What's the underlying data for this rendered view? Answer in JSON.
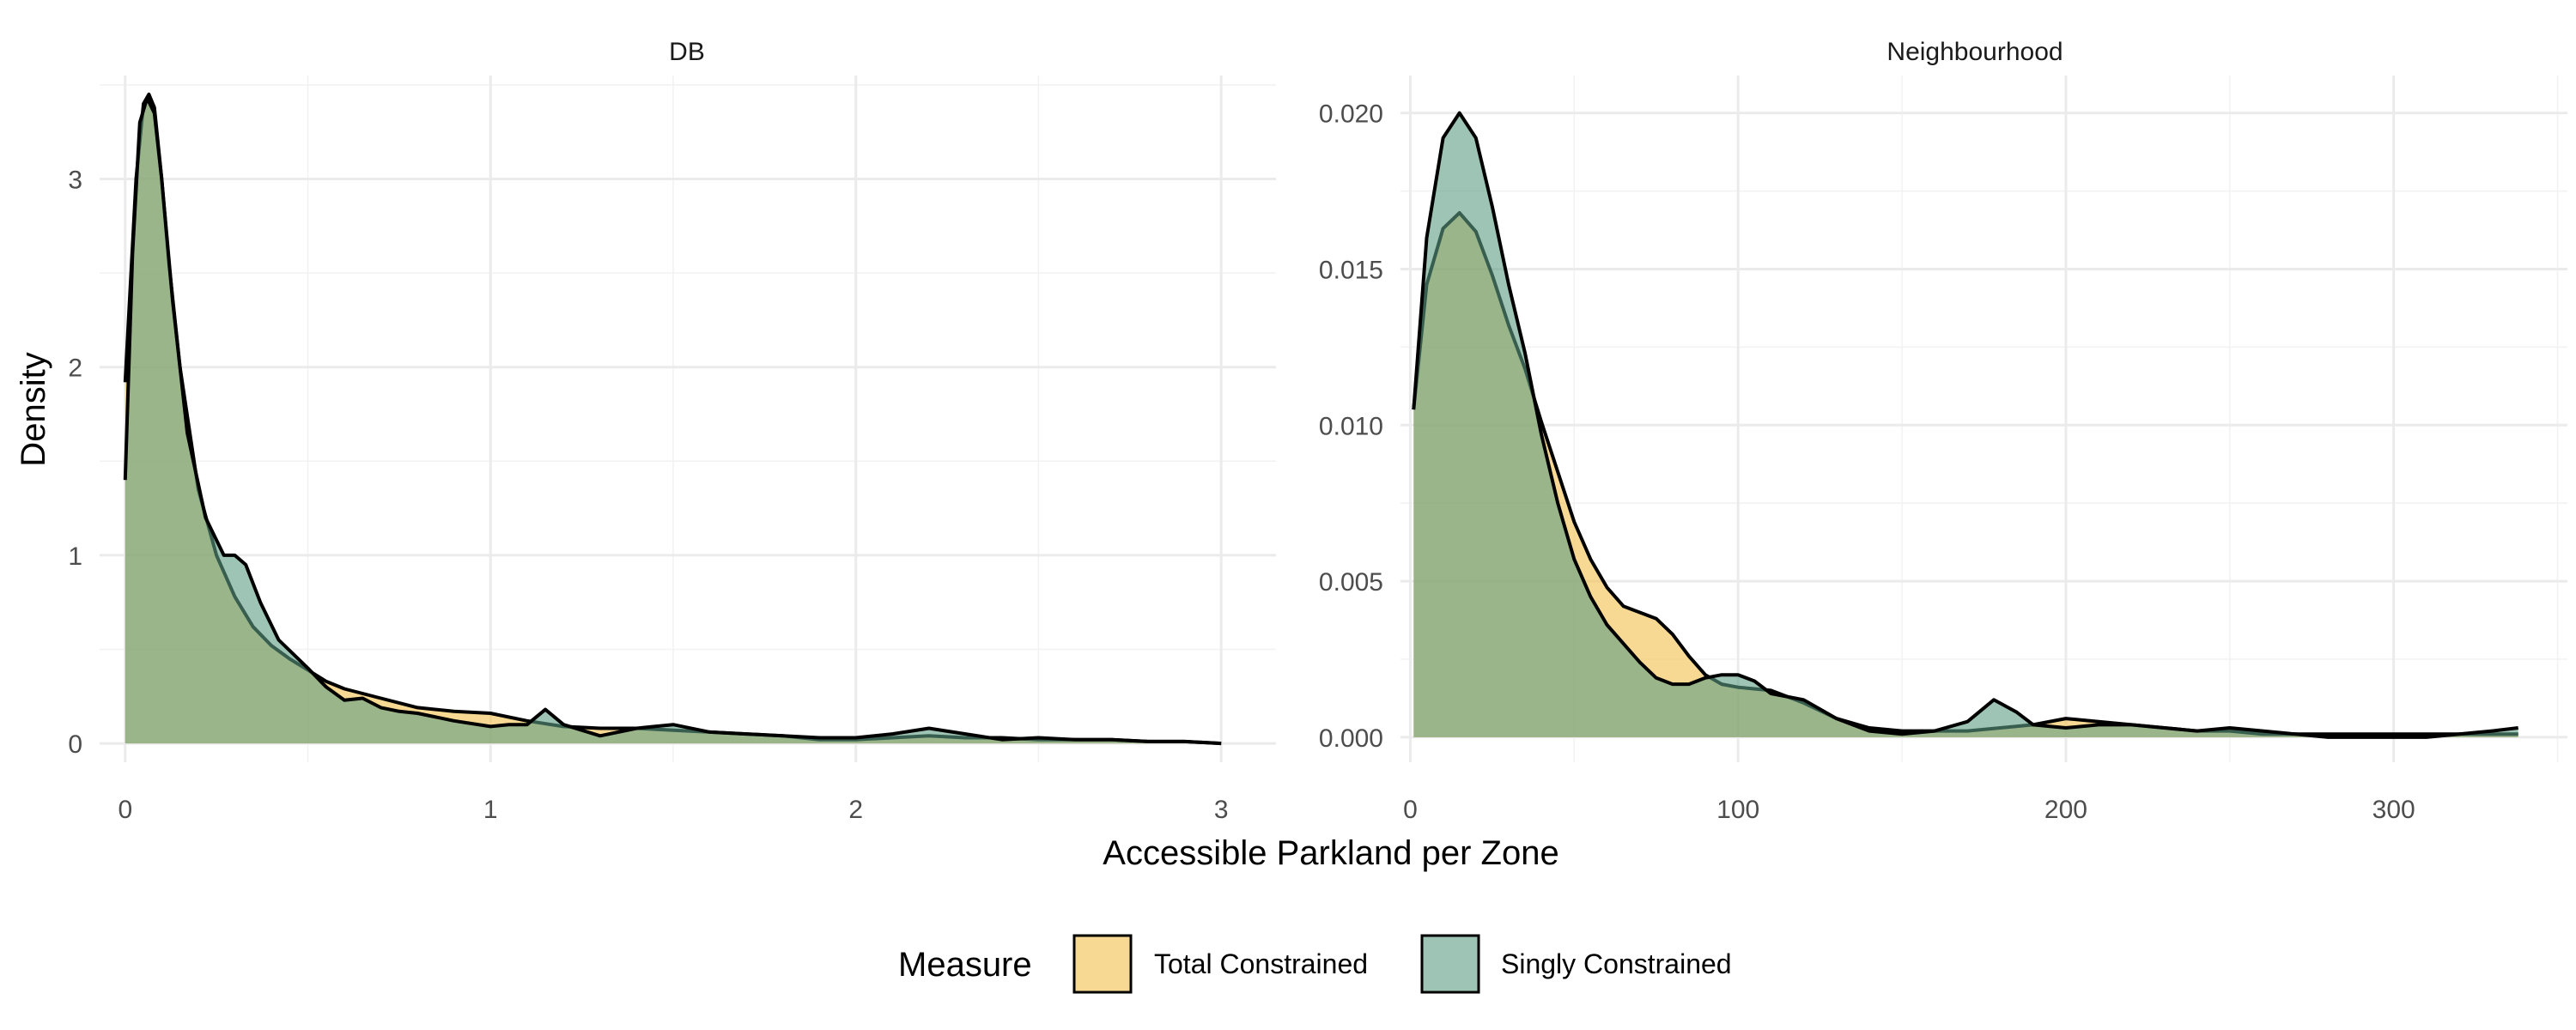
{
  "chart_data": {
    "type": "area",
    "xlabel": "Accessible Parkland per Zone",
    "ylabel": "Density",
    "legend": {
      "title": "Measure",
      "position": "bottom",
      "entries": [
        {
          "name": "Total Constrained",
          "color": "#f2c45a"
        },
        {
          "name": "Singly Constrained",
          "color": "#5e9c84"
        }
      ]
    },
    "grid": true,
    "panels": [
      {
        "title": "DB",
        "xlim": [
          -0.07,
          3.15
        ],
        "ylim": [
          -0.1,
          3.55
        ],
        "xticks": [
          0,
          1,
          2,
          3
        ],
        "xtick_labels": [
          "0",
          "1",
          "2",
          "3"
        ],
        "xminor": [
          0.5,
          1.5,
          2.5
        ],
        "yticks": [
          0,
          1,
          2,
          3
        ],
        "ytick_labels": [
          "0",
          "1",
          "2",
          "3"
        ],
        "yminor": [
          0.5,
          1.5,
          2.5,
          3.5
        ],
        "series": [
          {
            "name": "Total Constrained",
            "x": [
              0,
              0.03,
              0.05,
              0.065,
              0.08,
              0.1,
              0.12,
              0.15,
              0.2,
              0.25,
              0.3,
              0.35,
              0.4,
              0.45,
              0.5,
              0.55,
              0.6,
              0.7,
              0.8,
              0.9,
              1.0,
              1.1,
              1.2,
              1.3,
              1.4,
              1.5,
              1.6,
              1.7,
              1.8,
              1.9,
              2.0,
              2.1,
              2.2,
              2.3,
              2.4,
              2.5,
              2.6,
              2.7,
              2.8,
              2.9,
              3.0
            ],
            "y": [
              1.92,
              3.0,
              3.4,
              3.45,
              3.38,
              3.0,
              2.55,
              2.0,
              1.35,
              1.0,
              0.78,
              0.62,
              0.52,
              0.45,
              0.39,
              0.33,
              0.29,
              0.24,
              0.19,
              0.17,
              0.16,
              0.12,
              0.09,
              0.08,
              0.08,
              0.07,
              0.06,
              0.05,
              0.04,
              0.02,
              0.02,
              0.03,
              0.04,
              0.03,
              0.03,
              0.02,
              0.02,
              0.02,
              0.01,
              0.01,
              0.0
            ]
          },
          {
            "name": "Singly Constrained",
            "x": [
              0,
              0.02,
              0.04,
              0.06,
              0.08,
              0.1,
              0.13,
              0.17,
              0.22,
              0.27,
              0.3,
              0.33,
              0.37,
              0.42,
              0.5,
              0.55,
              0.6,
              0.65,
              0.7,
              0.75,
              0.8,
              0.9,
              1.0,
              1.05,
              1.1,
              1.15,
              1.2,
              1.3,
              1.4,
              1.5,
              1.6,
              1.7,
              1.8,
              1.9,
              2.0,
              2.1,
              2.2,
              2.3,
              2.4,
              2.5,
              2.6,
              2.7,
              2.8,
              2.9,
              3.0
            ],
            "y": [
              1.4,
              2.6,
              3.3,
              3.43,
              3.35,
              3.0,
              2.35,
              1.65,
              1.2,
              1.0,
              1.0,
              0.95,
              0.75,
              0.55,
              0.4,
              0.3,
              0.23,
              0.24,
              0.19,
              0.17,
              0.16,
              0.12,
              0.09,
              0.1,
              0.1,
              0.18,
              0.1,
              0.04,
              0.08,
              0.1,
              0.06,
              0.05,
              0.04,
              0.03,
              0.03,
              0.05,
              0.08,
              0.05,
              0.02,
              0.03,
              0.02,
              0.02,
              0.01,
              0.01,
              0.0
            ]
          }
        ]
      },
      {
        "title": "Neighbourhood",
        "xlim": [
          -3,
          353
        ],
        "ylim": [
          -0.0008,
          0.0212
        ],
        "xticks": [
          0,
          100,
          200,
          300
        ],
        "xtick_labels": [
          "0",
          "100",
          "200",
          "300"
        ],
        "xminor": [
          50,
          150,
          250,
          350
        ],
        "yticks": [
          0,
          0.005,
          0.01,
          0.015,
          0.02
        ],
        "ytick_labels": [
          "0.000",
          "0.005",
          "0.010",
          "0.015",
          "0.020"
        ],
        "yminor": [
          0.0025,
          0.0075,
          0.0125,
          0.0175
        ],
        "series": [
          {
            "name": "Total Constrained",
            "x": [
              1,
              5,
              10,
              15,
              20,
              25,
              30,
              35,
              40,
              45,
              50,
              55,
              60,
              65,
              70,
              75,
              80,
              85,
              90,
              95,
              100,
              110,
              120,
              130,
              140,
              150,
              160,
              170,
              180,
              190,
              200,
              210,
              220,
              230,
              240,
              250,
              260,
              270,
              280,
              290,
              300,
              310,
              320,
              330,
              338
            ],
            "y": [
              0.0105,
              0.0145,
              0.0163,
              0.0168,
              0.0162,
              0.0148,
              0.0132,
              0.0118,
              0.0101,
              0.0085,
              0.0069,
              0.0057,
              0.0048,
              0.0042,
              0.004,
              0.0038,
              0.0033,
              0.0026,
              0.002,
              0.0017,
              0.0016,
              0.0015,
              0.0011,
              0.0006,
              0.0003,
              0.0002,
              0.0002,
              0.0002,
              0.0003,
              0.0004,
              0.0006,
              0.0005,
              0.0004,
              0.0003,
              0.0002,
              0.0002,
              0.0001,
              0.0001,
              0.0001,
              0.0001,
              0.0001,
              0.0001,
              0.0001,
              0.0001,
              0.0001
            ]
          },
          {
            "name": "Singly Constrained",
            "x": [
              1,
              5,
              10,
              15,
              20,
              25,
              30,
              35,
              40,
              45,
              50,
              55,
              60,
              65,
              70,
              75,
              80,
              85,
              90,
              95,
              100,
              105,
              110,
              120,
              130,
              140,
              150,
              160,
              170,
              178,
              185,
              190,
              200,
              210,
              220,
              230,
              240,
              250,
              260,
              270,
              280,
              290,
              300,
              310,
              320,
              330,
              338
            ],
            "y": [
              0.0105,
              0.016,
              0.0192,
              0.02,
              0.0192,
              0.017,
              0.0145,
              0.0123,
              0.0097,
              0.0075,
              0.0057,
              0.0045,
              0.0036,
              0.003,
              0.0024,
              0.0019,
              0.0017,
              0.0017,
              0.0019,
              0.002,
              0.002,
              0.0018,
              0.0014,
              0.0012,
              0.0006,
              0.0002,
              0.0001,
              0.0002,
              0.0005,
              0.0012,
              0.0008,
              0.0004,
              0.0003,
              0.0004,
              0.0004,
              0.0003,
              0.0002,
              0.0003,
              0.0002,
              0.0001,
              0.0,
              0.0,
              0.0,
              0.0,
              0.0001,
              0.0002,
              0.0003
            ]
          }
        ]
      }
    ]
  }
}
